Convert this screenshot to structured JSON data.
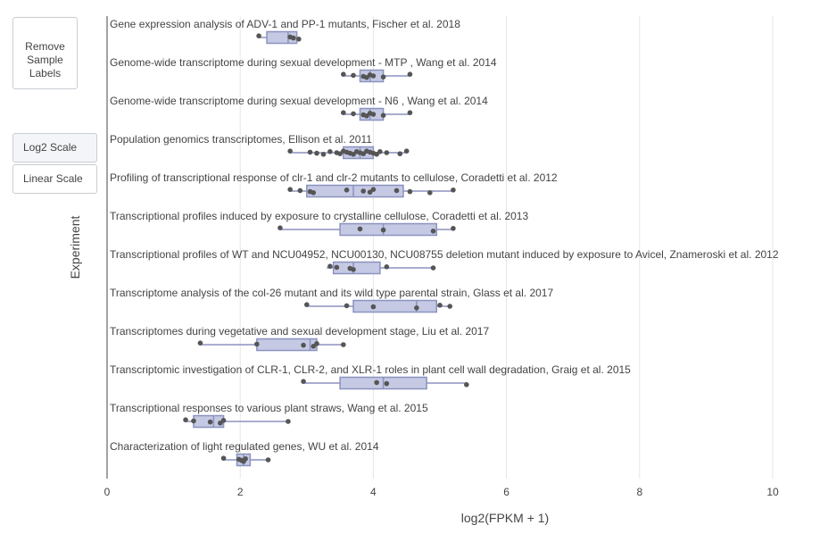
{
  "controls": {
    "remove_labels": "Remove Sample Labels",
    "log2_scale": "Log2 Scale",
    "linear_scale": "Linear Scale",
    "active_scale": "log2"
  },
  "colors": {
    "box_fill": "#c5c9e3",
    "box_stroke": "#8b92bf",
    "point": "#555555",
    "grid": "#e6e6e6",
    "axis_text": "#444444"
  },
  "chart_data": {
    "type": "box",
    "orientation": "horizontal",
    "xlabel": "log2(FPKM + 1)",
    "ylabel": "Experiment",
    "xlim": [
      0,
      10
    ],
    "xticks": [
      0,
      2,
      4,
      6,
      8,
      10
    ],
    "grid": "vertical",
    "series": [
      {
        "name": "Gene expression analysis of ADV-1 and PP-1 mutants, Fischer et al. 2018",
        "q1": 2.4,
        "median": 2.72,
        "q3": 2.85,
        "whisker_low": 2.28,
        "whisker_high": 2.9,
        "points": [
          2.28,
          2.75,
          2.8,
          2.88
        ]
      },
      {
        "name": "Genome-wide transcriptome during sexual development - MTP , Wang et al. 2014",
        "q1": 3.8,
        "median": 3.95,
        "q3": 4.15,
        "whisker_low": 3.55,
        "whisker_high": 4.55,
        "points": [
          3.55,
          3.7,
          3.85,
          3.9,
          3.95,
          4.0,
          4.15,
          4.55
        ]
      },
      {
        "name": "Genome-wide transcriptome during sexual development - N6 , Wang et al. 2014",
        "q1": 3.8,
        "median": 3.95,
        "q3": 4.15,
        "whisker_low": 3.55,
        "whisker_high": 4.55,
        "points": [
          3.55,
          3.7,
          3.85,
          3.9,
          3.95,
          4.0,
          4.15,
          4.55
        ]
      },
      {
        "name": "Population genomics transcriptomes, Ellison et al. 2011",
        "q1": 3.55,
        "median": 3.8,
        "q3": 4.0,
        "whisker_low": 2.75,
        "whisker_high": 4.5,
        "points": [
          2.75,
          3.05,
          3.15,
          3.25,
          3.35,
          3.45,
          3.5,
          3.55,
          3.6,
          3.65,
          3.7,
          3.75,
          3.8,
          3.85,
          3.9,
          3.95,
          4.0,
          4.05,
          4.1,
          4.2,
          4.4,
          4.5
        ]
      },
      {
        "name": "Profiling of transcriptional response of clr-1 and clr-2 mutants to cellulose, Coradetti et al. 2012",
        "q1": 3.0,
        "median": 3.7,
        "q3": 4.45,
        "whisker_low": 2.75,
        "whisker_high": 5.2,
        "points": [
          2.75,
          2.9,
          3.05,
          3.1,
          3.6,
          3.85,
          3.95,
          4.0,
          4.35,
          4.55,
          4.85,
          5.2
        ]
      },
      {
        "name": "Transcriptional profiles induced by exposure to crystalline cellulose, Coradetti et al. 2013",
        "q1": 3.5,
        "median": 4.15,
        "q3": 4.95,
        "whisker_low": 2.6,
        "whisker_high": 5.2,
        "points": [
          2.6,
          3.8,
          4.15,
          4.9,
          5.2
        ]
      },
      {
        "name": "Transcriptional profiles of WT and NCU04952, NCU00130, NCU08755 deletion mutant induced by exposure to Avicel, Znameroski et al. 2012",
        "q1": 3.4,
        "median": 3.7,
        "q3": 4.1,
        "whisker_low": 3.3,
        "whisker_high": 4.9,
        "points": [
          3.35,
          3.45,
          3.65,
          3.7,
          4.2,
          4.9
        ]
      },
      {
        "name": "Transcriptome analysis of the col-26 mutant and its wild type parental strain, Glass et al. 2017",
        "q1": 3.7,
        "median": 4.65,
        "q3": 4.95,
        "whisker_low": 3.0,
        "whisker_high": 5.15,
        "points": [
          3.0,
          3.6,
          4.0,
          4.65,
          5.0,
          5.15
        ]
      },
      {
        "name": "Transcriptomes during vegetative and sexual development stage, Liu et al. 2017",
        "q1": 2.25,
        "median": 3.05,
        "q3": 3.15,
        "whisker_low": 1.4,
        "whisker_high": 3.55,
        "points": [
          1.4,
          2.25,
          2.95,
          3.1,
          3.15,
          3.55
        ]
      },
      {
        "name": "Transcriptomic investigation of CLR-1, CLR-2, and XLR-1 roles in plant cell wall degradation, Graig et al. 2015",
        "q1": 3.5,
        "median": 4.15,
        "q3": 4.8,
        "whisker_low": 2.95,
        "whisker_high": 5.4,
        "points": [
          2.95,
          4.05,
          4.2,
          5.4
        ]
      },
      {
        "name": "Transcriptional responses to various plant straws, Wang et al. 2015",
        "q1": 1.3,
        "median": 1.6,
        "q3": 1.75,
        "whisker_low": 1.18,
        "whisker_high": 2.72,
        "points": [
          1.18,
          1.3,
          1.55,
          1.7,
          1.75,
          2.72
        ]
      },
      {
        "name": "Characterization of light regulated genes, WU et al. 2014",
        "q1": 1.95,
        "median": 2.05,
        "q3": 2.15,
        "whisker_low": 1.75,
        "whisker_high": 2.42,
        "points": [
          1.75,
          1.98,
          2.02,
          2.05,
          2.08,
          2.42
        ]
      }
    ]
  }
}
